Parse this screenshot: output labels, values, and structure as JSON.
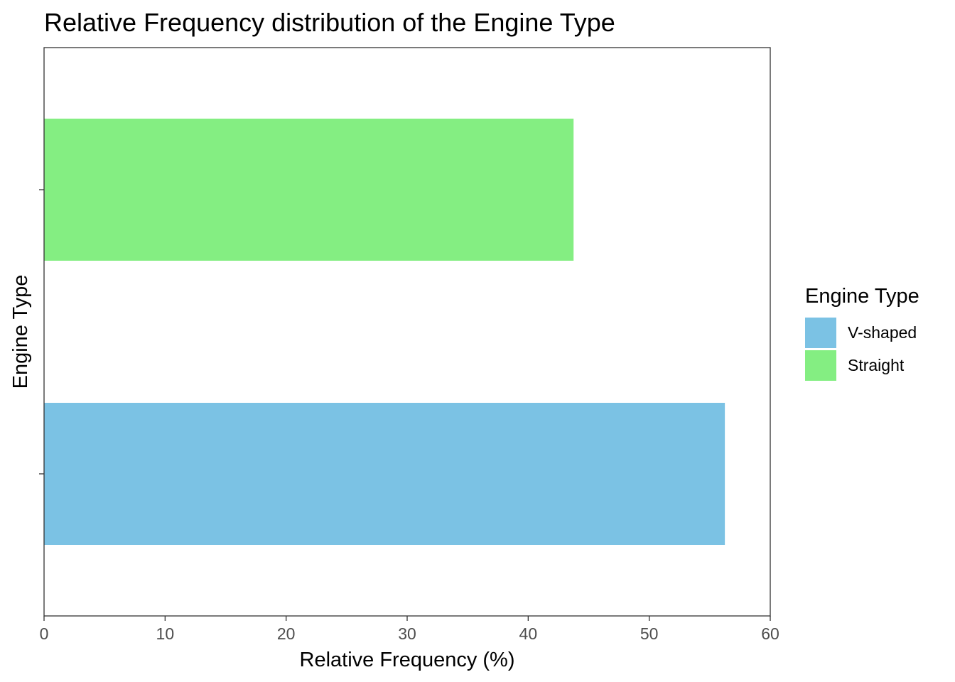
{
  "chart_data": {
    "type": "bar",
    "orientation": "horizontal",
    "title": "Relative Frequency distribution of the Engine Type",
    "xlabel": "Relative Frequency (%)",
    "ylabel": "Engine Type",
    "xlim": [
      0,
      60
    ],
    "x_ticks": [
      "0",
      "10",
      "20",
      "30",
      "40",
      "50",
      "60"
    ],
    "categories": [
      "V-shaped",
      "Straight"
    ],
    "values": [
      56.25,
      43.75
    ],
    "colors": [
      "#7BC2E4",
      "#84EE82"
    ],
    "y_tick_labels_shown": false,
    "grid": false,
    "legend": {
      "title": "Engine Type",
      "position": "right",
      "items": [
        {
          "label": "V-shaped",
          "color": "#7BC2E4"
        },
        {
          "label": "Straight",
          "color": "#84EE82"
        }
      ]
    }
  }
}
